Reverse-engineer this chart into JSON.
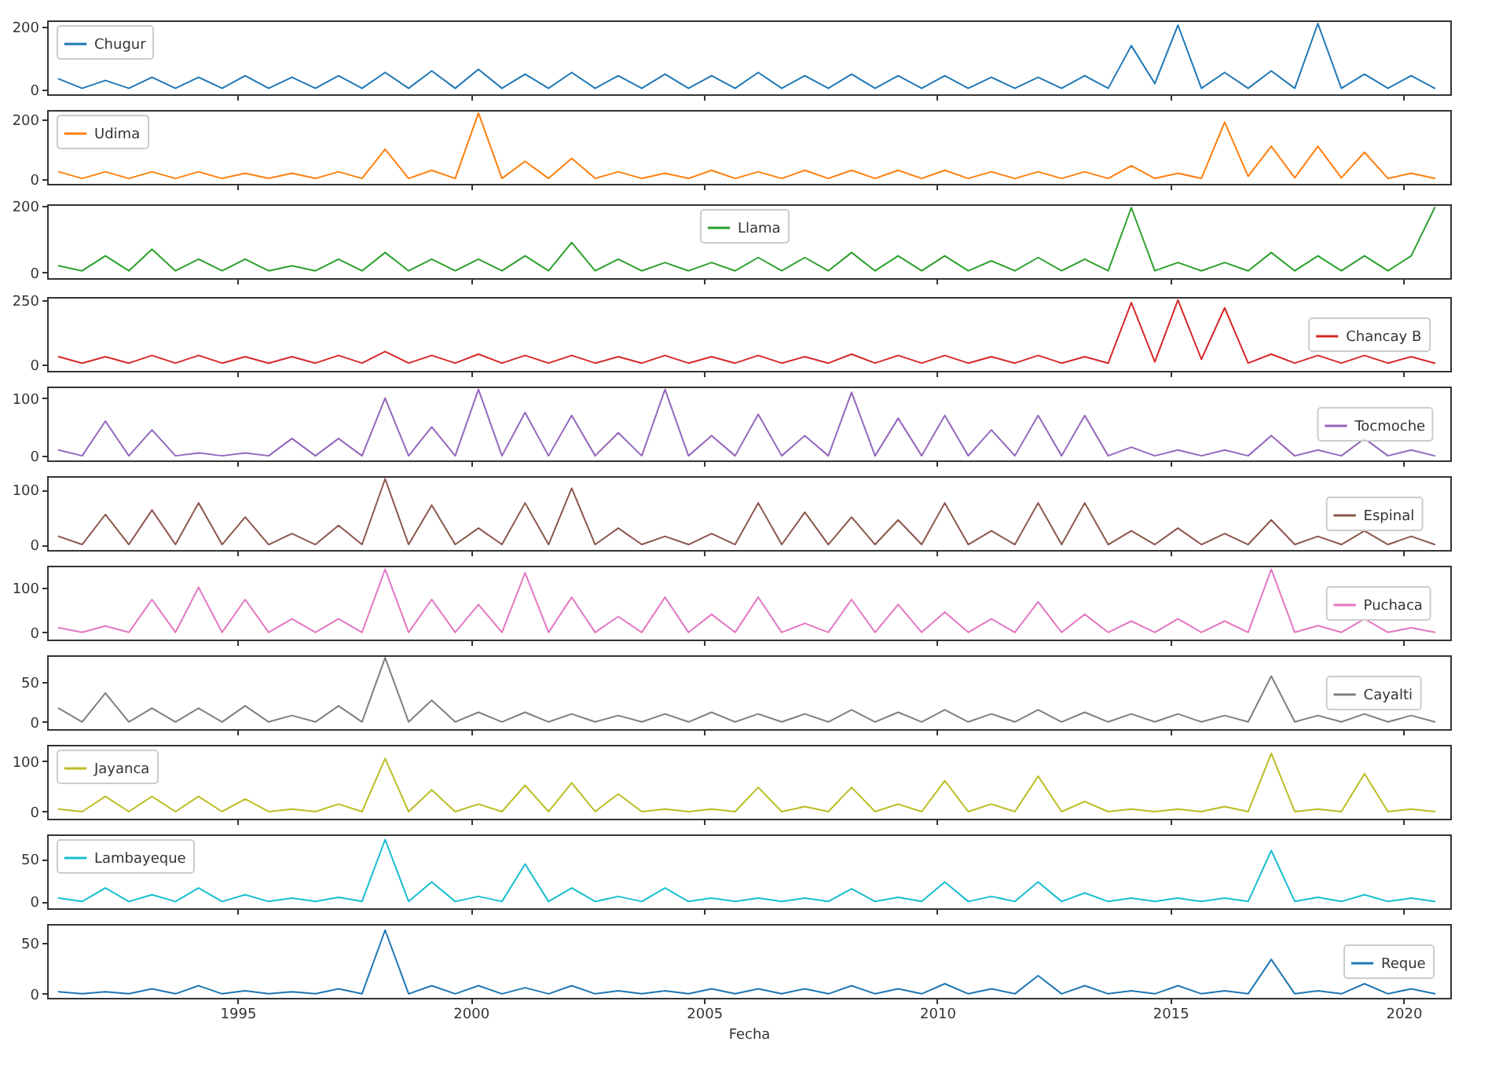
{
  "chart_data": [
    {
      "type": "line",
      "x": [
        "1991-03",
        "1991-09",
        "1992-03",
        "1992-09",
        "1993-03",
        "1993-09",
        "1994-03",
        "1994-09",
        "1995-03",
        "1995-09",
        "1996-03",
        "1996-09",
        "1997-03",
        "1997-09",
        "1998-03",
        "1998-09",
        "1999-03",
        "1999-09",
        "2000-03",
        "2000-09",
        "2001-03",
        "2001-09",
        "2002-03",
        "2002-09",
        "2003-03",
        "2003-09",
        "2004-03",
        "2004-09",
        "2005-03",
        "2005-09",
        "2006-03",
        "2006-09",
        "2007-03",
        "2007-09",
        "2008-03",
        "2008-09",
        "2009-03",
        "2009-09",
        "2010-03",
        "2010-09",
        "2011-03",
        "2011-09",
        "2012-03",
        "2012-09",
        "2013-03",
        "2013-09",
        "2014-03",
        "2014-09",
        "2015-03",
        "2015-09",
        "2016-03",
        "2016-09",
        "2017-03",
        "2017-09",
        "2018-03",
        "2018-09",
        "2019-03",
        "2019-09",
        "2020-03",
        "2020-09"
      ],
      "series": [
        {
          "name": "Chugur",
          "color": "#1f77b4",
          "values": [
            35,
            5,
            30,
            5,
            40,
            5,
            40,
            5,
            45,
            5,
            40,
            5,
            45,
            5,
            55,
            5,
            60,
            5,
            65,
            5,
            50,
            5,
            55,
            5,
            45,
            5,
            50,
            5,
            45,
            5,
            55,
            5,
            45,
            5,
            50,
            5,
            45,
            5,
            45,
            5,
            40,
            5,
            40,
            5,
            45,
            5,
            140,
            20,
            205,
            5,
            55,
            5,
            60,
            5,
            210,
            5,
            50,
            5,
            45,
            5
          ]
        }
      ],
      "xlim": [
        "1990-12",
        "2021-01"
      ],
      "xticks": [
        "1995",
        "2000",
        "2005",
        "2010",
        "2015",
        "2020"
      ],
      "ylim": [
        -14,
        220
      ],
      "yticks": [
        0,
        200
      ],
      "legend": "top left",
      "tick_labels": "y"
    },
    {
      "type": "line",
      "x": [
        "1991-03",
        "1991-09",
        "1992-03",
        "1992-09",
        "1993-03",
        "1993-09",
        "1994-03",
        "1994-09",
        "1995-03",
        "1995-09",
        "1996-03",
        "1996-09",
        "1997-03",
        "1997-09",
        "1998-03",
        "1998-09",
        "1999-03",
        "1999-09",
        "2000-03",
        "2000-09",
        "2001-03",
        "2001-09",
        "2002-03",
        "2002-09",
        "2003-03",
        "2003-09",
        "2004-03",
        "2004-09",
        "2005-03",
        "2005-09",
        "2006-03",
        "2006-09",
        "2007-03",
        "2007-09",
        "2008-03",
        "2008-09",
        "2009-03",
        "2009-09",
        "2010-03",
        "2010-09",
        "2011-03",
        "2011-09",
        "2012-03",
        "2012-09",
        "2013-03",
        "2013-09",
        "2014-03",
        "2014-09",
        "2015-03",
        "2015-09",
        "2016-03",
        "2016-09",
        "2017-03",
        "2017-09",
        "2018-03",
        "2018-09",
        "2019-03",
        "2019-09",
        "2020-03",
        "2020-09"
      ],
      "series": [
        {
          "name": "Udima",
          "color": "#ff7f0e",
          "values": [
            25,
            3,
            25,
            3,
            25,
            3,
            25,
            3,
            20,
            3,
            20,
            3,
            25,
            3,
            100,
            3,
            30,
            3,
            220,
            3,
            60,
            3,
            70,
            3,
            25,
            3,
            20,
            3,
            30,
            3,
            25,
            3,
            30,
            3,
            30,
            3,
            30,
            3,
            30,
            3,
            25,
            3,
            25,
            3,
            25,
            3,
            45,
            3,
            20,
            3,
            190,
            10,
            110,
            5,
            110,
            5,
            90,
            3,
            20,
            3
          ]
        }
      ],
      "xlim": [
        "1990-12",
        "2021-01"
      ],
      "xticks": [
        "1995",
        "2000",
        "2005",
        "2010",
        "2015",
        "2020"
      ],
      "ylim": [
        -15,
        230
      ],
      "yticks": [
        0,
        200
      ],
      "legend": "top left",
      "tick_labels": "y"
    },
    {
      "type": "line",
      "x": [
        "1991-03",
        "1991-09",
        "1992-03",
        "1992-09",
        "1993-03",
        "1993-09",
        "1994-03",
        "1994-09",
        "1995-03",
        "1995-09",
        "1996-03",
        "1996-09",
        "1997-03",
        "1997-09",
        "1998-03",
        "1998-09",
        "1999-03",
        "1999-09",
        "2000-03",
        "2000-09",
        "2001-03",
        "2001-09",
        "2002-03",
        "2002-09",
        "2003-03",
        "2003-09",
        "2004-03",
        "2004-09",
        "2005-03",
        "2005-09",
        "2006-03",
        "2006-09",
        "2007-03",
        "2007-09",
        "2008-03",
        "2008-09",
        "2009-03",
        "2009-09",
        "2010-03",
        "2010-09",
        "2011-03",
        "2011-09",
        "2012-03",
        "2012-09",
        "2013-03",
        "2013-09",
        "2014-03",
        "2014-09",
        "2015-03",
        "2015-09",
        "2016-03",
        "2016-09",
        "2017-03",
        "2017-09",
        "2018-03",
        "2018-09",
        "2019-03",
        "2019-09",
        "2020-03",
        "2020-09"
      ],
      "series": [
        {
          "name": "Llama",
          "color": "#2ca02c",
          "values": [
            20,
            5,
            50,
            5,
            70,
            5,
            40,
            5,
            40,
            5,
            20,
            5,
            40,
            5,
            60,
            5,
            40,
            5,
            40,
            5,
            50,
            5,
            90,
            5,
            40,
            5,
            30,
            5,
            30,
            5,
            45,
            5,
            45,
            5,
            60,
            5,
            50,
            5,
            50,
            5,
            35,
            5,
            45,
            5,
            40,
            5,
            195,
            5,
            30,
            5,
            30,
            5,
            60,
            5,
            50,
            5,
            50,
            5,
            50,
            195
          ]
        }
      ],
      "xlim": [
        "1990-12",
        "2021-01"
      ],
      "xticks": [
        "1995",
        "2000",
        "2005",
        "2010",
        "2015",
        "2020"
      ],
      "ylim": [
        -17,
        205
      ],
      "yticks": [
        0,
        200
      ],
      "legend": "top",
      "tick_labels": "y"
    },
    {
      "type": "line",
      "x": [
        "1991-03",
        "1991-09",
        "1992-03",
        "1992-09",
        "1993-03",
        "1993-09",
        "1994-03",
        "1994-09",
        "1995-03",
        "1995-09",
        "1996-03",
        "1996-09",
        "1997-03",
        "1997-09",
        "1998-03",
        "1998-09",
        "1999-03",
        "1999-09",
        "2000-03",
        "2000-09",
        "2001-03",
        "2001-09",
        "2002-03",
        "2002-09",
        "2003-03",
        "2003-09",
        "2004-03",
        "2004-09",
        "2005-03",
        "2005-09",
        "2006-03",
        "2006-09",
        "2007-03",
        "2007-09",
        "2008-03",
        "2008-09",
        "2009-03",
        "2009-09",
        "2010-03",
        "2010-09",
        "2011-03",
        "2011-09",
        "2012-03",
        "2012-09",
        "2013-03",
        "2013-09",
        "2014-03",
        "2014-09",
        "2015-03",
        "2015-09",
        "2016-03",
        "2016-09",
        "2017-03",
        "2017-09",
        "2018-03",
        "2018-09",
        "2019-03",
        "2019-09",
        "2020-03",
        "2020-09"
      ],
      "series": [
        {
          "name": "Chancay B",
          "color": "#d62728",
          "values": [
            30,
            5,
            30,
            5,
            35,
            5,
            35,
            5,
            30,
            5,
            30,
            5,
            35,
            5,
            50,
            5,
            35,
            5,
            40,
            5,
            35,
            5,
            35,
            5,
            30,
            5,
            35,
            5,
            30,
            5,
            35,
            5,
            30,
            5,
            40,
            5,
            35,
            5,
            35,
            5,
            30,
            5,
            35,
            5,
            30,
            5,
            240,
            10,
            250,
            20,
            220,
            5,
            40,
            5,
            35,
            5,
            35,
            5,
            30,
            5
          ]
        }
      ],
      "xlim": [
        "1990-12",
        "2021-01"
      ],
      "xticks": [
        "1995",
        "2000",
        "2005",
        "2010",
        "2015",
        "2020"
      ],
      "ylim": [
        -25,
        262
      ],
      "yticks": [
        0,
        250
      ],
      "legend": "right",
      "tick_labels": "y"
    },
    {
      "type": "line",
      "x": [
        "1991-03",
        "1991-09",
        "1992-03",
        "1992-09",
        "1993-03",
        "1993-09",
        "1994-03",
        "1994-09",
        "1995-03",
        "1995-09",
        "1996-03",
        "1996-09",
        "1997-03",
        "1997-09",
        "1998-03",
        "1998-09",
        "1999-03",
        "1999-09",
        "2000-03",
        "2000-09",
        "2001-03",
        "2001-09",
        "2002-03",
        "2002-09",
        "2003-03",
        "2003-09",
        "2004-03",
        "2004-09",
        "2005-03",
        "2005-09",
        "2006-03",
        "2006-09",
        "2007-03",
        "2007-09",
        "2008-03",
        "2008-09",
        "2009-03",
        "2009-09",
        "2010-03",
        "2010-09",
        "2011-03",
        "2011-09",
        "2012-03",
        "2012-09",
        "2013-03",
        "2013-09",
        "2014-03",
        "2014-09",
        "2015-03",
        "2015-09",
        "2016-03",
        "2016-09",
        "2017-03",
        "2017-09",
        "2018-03",
        "2018-09",
        "2019-03",
        "2019-09",
        "2020-03",
        "2020-09"
      ],
      "series": [
        {
          "name": "Tocmoche",
          "color": "#9467bd",
          "values": [
            10,
            0,
            60,
            0,
            45,
            0,
            5,
            0,
            5,
            0,
            30,
            0,
            30,
            0,
            100,
            0,
            50,
            0,
            115,
            0,
            75,
            0,
            70,
            0,
            40,
            0,
            115,
            0,
            35,
            0,
            72,
            0,
            35,
            0,
            110,
            0,
            65,
            0,
            70,
            0,
            45,
            0,
            70,
            0,
            70,
            0,
            15,
            0,
            10,
            0,
            10,
            0,
            35,
            0,
            10,
            0,
            30,
            0,
            10,
            0
          ]
        }
      ],
      "xlim": [
        "1990-12",
        "2021-01"
      ],
      "xticks": [
        "1995",
        "2000",
        "2005",
        "2010",
        "2015",
        "2020"
      ],
      "ylim": [
        -8,
        120
      ],
      "yticks": [
        0,
        100
      ],
      "legend": "right",
      "tick_labels": "y"
    },
    {
      "type": "line",
      "x": [
        "1991-03",
        "1991-09",
        "1992-03",
        "1992-09",
        "1993-03",
        "1993-09",
        "1994-03",
        "1994-09",
        "1995-03",
        "1995-09",
        "1996-03",
        "1996-09",
        "1997-03",
        "1997-09",
        "1998-03",
        "1998-09",
        "1999-03",
        "1999-09",
        "2000-03",
        "2000-09",
        "2001-03",
        "2001-09",
        "2002-03",
        "2002-09",
        "2003-03",
        "2003-09",
        "2004-03",
        "2004-09",
        "2005-03",
        "2005-09",
        "2006-03",
        "2006-09",
        "2007-03",
        "2007-09",
        "2008-03",
        "2008-09",
        "2009-03",
        "2009-09",
        "2010-03",
        "2010-09",
        "2011-03",
        "2011-09",
        "2012-03",
        "2012-09",
        "2013-03",
        "2013-09",
        "2014-03",
        "2014-09",
        "2015-03",
        "2015-09",
        "2016-03",
        "2016-09",
        "2017-03",
        "2017-09",
        "2018-03",
        "2018-09",
        "2019-03",
        "2019-09",
        "2020-03",
        "2020-09"
      ],
      "series": [
        {
          "name": "Espinal",
          "color": "#8c564b",
          "values": [
            15,
            0,
            55,
            0,
            63,
            0,
            76,
            0,
            50,
            0,
            20,
            0,
            35,
            0,
            120,
            0,
            72,
            0,
            30,
            0,
            76,
            0,
            103,
            0,
            30,
            0,
            15,
            0,
            20,
            0,
            76,
            0,
            59,
            0,
            50,
            0,
            45,
            0,
            76,
            0,
            25,
            0,
            76,
            0,
            76,
            0,
            25,
            0,
            30,
            0,
            20,
            0,
            45,
            0,
            15,
            0,
            25,
            0,
            15,
            0
          ]
        }
      ],
      "xlim": [
        "1990-12",
        "2021-01"
      ],
      "xticks": [
        "1995",
        "2000",
        "2005",
        "2010",
        "2015",
        "2020"
      ],
      "ylim": [
        -10,
        125
      ],
      "yticks": [
        0,
        100
      ],
      "legend": "right",
      "tick_labels": "y"
    },
    {
      "type": "line",
      "x": [
        "1991-03",
        "1991-09",
        "1992-03",
        "1992-09",
        "1993-03",
        "1993-09",
        "1994-03",
        "1994-09",
        "1995-03",
        "1995-09",
        "1996-03",
        "1996-09",
        "1997-03",
        "1997-09",
        "1998-03",
        "1998-09",
        "1999-03",
        "1999-09",
        "2000-03",
        "2000-09",
        "2001-03",
        "2001-09",
        "2002-03",
        "2002-09",
        "2003-03",
        "2003-09",
        "2004-03",
        "2004-09",
        "2005-03",
        "2005-09",
        "2006-03",
        "2006-09",
        "2007-03",
        "2007-09",
        "2008-03",
        "2008-09",
        "2009-03",
        "2009-09",
        "2010-03",
        "2010-09",
        "2011-03",
        "2011-09",
        "2012-03",
        "2012-09",
        "2013-03",
        "2013-09",
        "2014-03",
        "2014-09",
        "2015-03",
        "2015-09",
        "2016-03",
        "2016-09",
        "2017-03",
        "2017-09",
        "2018-03",
        "2018-09",
        "2019-03",
        "2019-09",
        "2020-03",
        "2020-09"
      ],
      "series": [
        {
          "name": "Puchaca",
          "color": "#e377c2",
          "values": [
            10,
            0,
            14,
            0,
            73,
            0,
            100,
            0,
            73,
            0,
            30,
            0,
            30,
            0,
            140,
            0,
            73,
            0,
            62,
            0,
            132,
            0,
            78,
            0,
            35,
            0,
            78,
            0,
            40,
            0,
            78,
            0,
            20,
            0,
            73,
            0,
            62,
            0,
            45,
            0,
            30,
            0,
            68,
            0,
            40,
            0,
            25,
            0,
            30,
            0,
            25,
            0,
            140,
            0,
            15,
            0,
            30,
            0,
            10,
            0
          ]
        }
      ],
      "xlim": [
        "1990-12",
        "2021-01"
      ],
      "xticks": [
        "1995",
        "2000",
        "2005",
        "2010",
        "2015",
        "2020"
      ],
      "ylim": [
        -16,
        148
      ],
      "yticks": [
        0,
        100
      ],
      "legend": "right",
      "tick_labels": "y"
    },
    {
      "type": "line",
      "x": [
        "1991-03",
        "1991-09",
        "1992-03",
        "1992-09",
        "1993-03",
        "1993-09",
        "1994-03",
        "1994-09",
        "1995-03",
        "1995-09",
        "1996-03",
        "1996-09",
        "1997-03",
        "1997-09",
        "1998-03",
        "1998-09",
        "1999-03",
        "1999-09",
        "2000-03",
        "2000-09",
        "2001-03",
        "2001-09",
        "2002-03",
        "2002-09",
        "2003-03",
        "2003-09",
        "2004-03",
        "2004-09",
        "2005-03",
        "2005-09",
        "2006-03",
        "2006-09",
        "2007-03",
        "2007-09",
        "2008-03",
        "2008-09",
        "2009-03",
        "2009-09",
        "2010-03",
        "2010-09",
        "2011-03",
        "2011-09",
        "2012-03",
        "2012-09",
        "2013-03",
        "2013-09",
        "2014-03",
        "2014-09",
        "2015-03",
        "2015-09",
        "2016-03",
        "2016-09",
        "2017-03",
        "2017-09",
        "2018-03",
        "2018-09",
        "2019-03",
        "2019-09",
        "2020-03",
        "2020-09"
      ],
      "series": [
        {
          "name": "Cayalti",
          "color": "#7f7f7f",
          "values": [
            17,
            0,
            36,
            0,
            17,
            0,
            17,
            0,
            20,
            0,
            8,
            0,
            20,
            0,
            80,
            0,
            27,
            0,
            12,
            0,
            12,
            0,
            10,
            0,
            8,
            0,
            10,
            0,
            12,
            0,
            10,
            0,
            10,
            0,
            15,
            0,
            12,
            0,
            15,
            0,
            10,
            0,
            15,
            0,
            12,
            0,
            10,
            0,
            10,
            0,
            8,
            0,
            57,
            0,
            8,
            0,
            10,
            0,
            8,
            0
          ]
        }
      ],
      "xlim": [
        "1990-12",
        "2021-01"
      ],
      "xticks": [
        "1995",
        "2000",
        "2005",
        "2010",
        "2015",
        "2020"
      ],
      "ylim": [
        -9,
        83
      ],
      "yticks": [
        0,
        50
      ],
      "legend": "right",
      "tick_labels": "y"
    },
    {
      "type": "line",
      "x": [
        "1991-03",
        "1991-09",
        "1992-03",
        "1992-09",
        "1993-03",
        "1993-09",
        "1994-03",
        "1994-09",
        "1995-03",
        "1995-09",
        "1996-03",
        "1996-09",
        "1997-03",
        "1997-09",
        "1998-03",
        "1998-09",
        "1999-03",
        "1999-09",
        "2000-03",
        "2000-09",
        "2001-03",
        "2001-09",
        "2002-03",
        "2002-09",
        "2003-03",
        "2003-09",
        "2004-03",
        "2004-09",
        "2005-03",
        "2005-09",
        "2006-03",
        "2006-09",
        "2007-03",
        "2007-09",
        "2008-03",
        "2008-09",
        "2009-03",
        "2009-09",
        "2010-03",
        "2010-09",
        "2011-03",
        "2011-09",
        "2012-03",
        "2012-09",
        "2013-03",
        "2013-09",
        "2014-03",
        "2014-09",
        "2015-03",
        "2015-09",
        "2016-03",
        "2016-09",
        "2017-03",
        "2017-09",
        "2018-03",
        "2018-09",
        "2019-03",
        "2019-09",
        "2020-03",
        "2020-09"
      ],
      "series": [
        {
          "name": "Jayanca",
          "color": "#bcbd22",
          "values": [
            5,
            0,
            30,
            0,
            30,
            0,
            30,
            0,
            25,
            0,
            5,
            0,
            15,
            0,
            105,
            0,
            43,
            0,
            15,
            0,
            52,
            0,
            57,
            0,
            35,
            0,
            5,
            0,
            5,
            0,
            48,
            0,
            10,
            0,
            48,
            0,
            15,
            0,
            61,
            0,
            15,
            0,
            70,
            0,
            20,
            0,
            5,
            0,
            5,
            0,
            10,
            0,
            115,
            0,
            5,
            0,
            75,
            0,
            5,
            0
          ]
        }
      ],
      "xlim": [
        "1990-12",
        "2021-01"
      ],
      "xticks": [
        "1995",
        "2000",
        "2005",
        "2010",
        "2015",
        "2020"
      ],
      "ylim": [
        -14,
        132
      ],
      "yticks": [
        0,
        100
      ],
      "legend": "top left",
      "tick_labels": "y"
    },
    {
      "type": "line",
      "x": [
        "1991-03",
        "1991-09",
        "1992-03",
        "1992-09",
        "1993-03",
        "1993-09",
        "1994-03",
        "1994-09",
        "1995-03",
        "1995-09",
        "1996-03",
        "1996-09",
        "1997-03",
        "1997-09",
        "1998-03",
        "1998-09",
        "1999-03",
        "1999-09",
        "2000-03",
        "2000-09",
        "2001-03",
        "2001-09",
        "2002-03",
        "2002-09",
        "2003-03",
        "2003-09",
        "2004-03",
        "2004-09",
        "2005-03",
        "2005-09",
        "2006-03",
        "2006-09",
        "2007-03",
        "2007-09",
        "2008-03",
        "2008-09",
        "2009-03",
        "2009-09",
        "2010-03",
        "2010-09",
        "2011-03",
        "2011-09",
        "2012-03",
        "2012-09",
        "2013-03",
        "2013-09",
        "2014-03",
        "2014-09",
        "2015-03",
        "2015-09",
        "2016-03",
        "2016-09",
        "2017-03",
        "2017-09",
        "2018-03",
        "2018-09",
        "2019-03",
        "2019-09",
        "2020-03",
        "2020-09"
      ],
      "series": [
        {
          "name": "Lambayeque",
          "color": "#17becf",
          "values": [
            4,
            0,
            16,
            0,
            8,
            0,
            16,
            0,
            8,
            0,
            4,
            0,
            5,
            0,
            73,
            0,
            23,
            0,
            6,
            0,
            44,
            0,
            16,
            0,
            6,
            0,
            16,
            0,
            4,
            0,
            4,
            0,
            4,
            0,
            15,
            0,
            5,
            0,
            23,
            0,
            6,
            0,
            23,
            0,
            10,
            0,
            4,
            0,
            4,
            0,
            4,
            0,
            60,
            0,
            5,
            0,
            8,
            0,
            4,
            0
          ]
        }
      ],
      "xlim": [
        "1990-12",
        "2021-01"
      ],
      "xticks": [
        "1995",
        "2000",
        "2005",
        "2010",
        "2015",
        "2020"
      ],
      "ylim": [
        -8,
        79
      ],
      "yticks": [
        0,
        50
      ],
      "legend": "top left",
      "tick_labels": "y"
    },
    {
      "type": "line",
      "x": [
        "1991-03",
        "1991-09",
        "1992-03",
        "1992-09",
        "1993-03",
        "1993-09",
        "1994-03",
        "1994-09",
        "1995-03",
        "1995-09",
        "1996-03",
        "1996-09",
        "1997-03",
        "1997-09",
        "1998-03",
        "1998-09",
        "1999-03",
        "1999-09",
        "2000-03",
        "2000-09",
        "2001-03",
        "2001-09",
        "2002-03",
        "2002-09",
        "2003-03",
        "2003-09",
        "2004-03",
        "2004-09",
        "2005-03",
        "2005-09",
        "2006-03",
        "2006-09",
        "2007-03",
        "2007-09",
        "2008-03",
        "2008-09",
        "2009-03",
        "2009-09",
        "2010-03",
        "2010-09",
        "2011-03",
        "2011-09",
        "2012-03",
        "2012-09",
        "2013-03",
        "2013-09",
        "2014-03",
        "2014-09",
        "2015-03",
        "2015-09",
        "2016-03",
        "2016-09",
        "2017-03",
        "2017-09",
        "2018-03",
        "2018-09",
        "2019-03",
        "2019-09",
        "2020-03",
        "2020-09"
      ],
      "series": [
        {
          "name": "Reque",
          "color": "#1f77b4",
          "values": [
            2,
            0,
            2,
            0,
            5,
            0,
            8,
            0,
            3,
            0,
            2,
            0,
            5,
            0,
            63,
            0,
            8,
            0,
            8,
            0,
            6,
            0,
            8,
            0,
            3,
            0,
            3,
            0,
            5,
            0,
            5,
            0,
            5,
            0,
            8,
            0,
            5,
            0,
            10,
            0,
            5,
            0,
            18,
            0,
            8,
            0,
            3,
            0,
            8,
            0,
            3,
            0,
            34,
            0,
            3,
            0,
            10,
            0,
            5,
            0
          ]
        }
      ],
      "xlim": [
        "1990-12",
        "2021-01"
      ],
      "xticks": [
        "1995",
        "2000",
        "2005",
        "2010",
        "2015",
        "2020"
      ],
      "ylim": [
        -4,
        69
      ],
      "yticks": [
        0,
        50
      ],
      "xlabel": "Fecha",
      "legend": "right"
    }
  ]
}
